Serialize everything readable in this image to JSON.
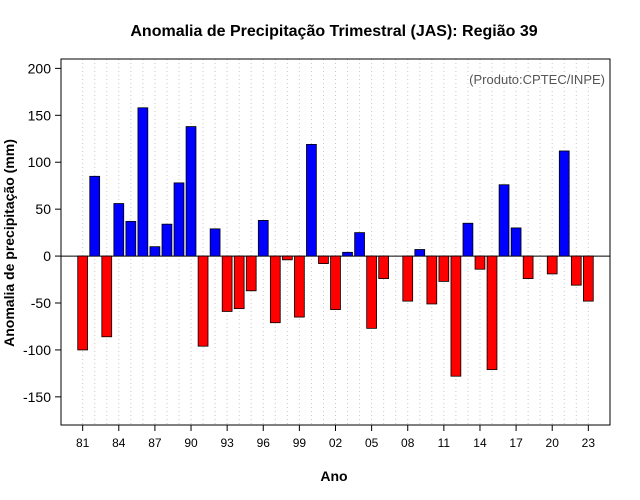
{
  "chart_data": {
    "type": "bar",
    "title": "Anomalia de Precipitação Trimestral (JAS): Região 39",
    "xlabel": "Ano",
    "ylabel": "Anomalia de precipitação (mm)",
    "credit": "(Produto:CPTEC/INPE)",
    "ylim": [
      -180,
      210
    ],
    "yticks": [
      -150,
      -100,
      -50,
      0,
      50,
      100,
      150,
      200
    ],
    "x_tick_labels": [
      "81",
      "84",
      "87",
      "90",
      "93",
      "96",
      "99",
      "02",
      "05",
      "08",
      "11",
      "14",
      "17",
      "20",
      "23"
    ],
    "vertical_grid": true,
    "colors": {
      "positive": "#0000ff",
      "negative": "#ff0000"
    },
    "years": [
      1981,
      1982,
      1983,
      1984,
      1985,
      1986,
      1987,
      1988,
      1989,
      1990,
      1991,
      1992,
      1993,
      1994,
      1995,
      1996,
      1997,
      1998,
      1999,
      2000,
      2001,
      2002,
      2003,
      2004,
      2005,
      2006,
      2007,
      2008,
      2009,
      2010,
      2011,
      2012,
      2013,
      2014,
      2015,
      2016,
      2017,
      2018,
      2019,
      2020,
      2021,
      2022,
      2023
    ],
    "values": [
      -100,
      85,
      -86,
      56,
      37,
      158,
      10,
      34,
      78,
      138,
      -96,
      29,
      -59,
      -56,
      -37,
      38,
      -71,
      -4,
      -65,
      119,
      -8,
      -57,
      4,
      25,
      -77,
      -24,
      0,
      -48,
      7,
      -51,
      -27,
      -128,
      35,
      -14,
      -121,
      76,
      30,
      -24,
      0,
      -19,
      112,
      -31,
      -48
    ]
  }
}
